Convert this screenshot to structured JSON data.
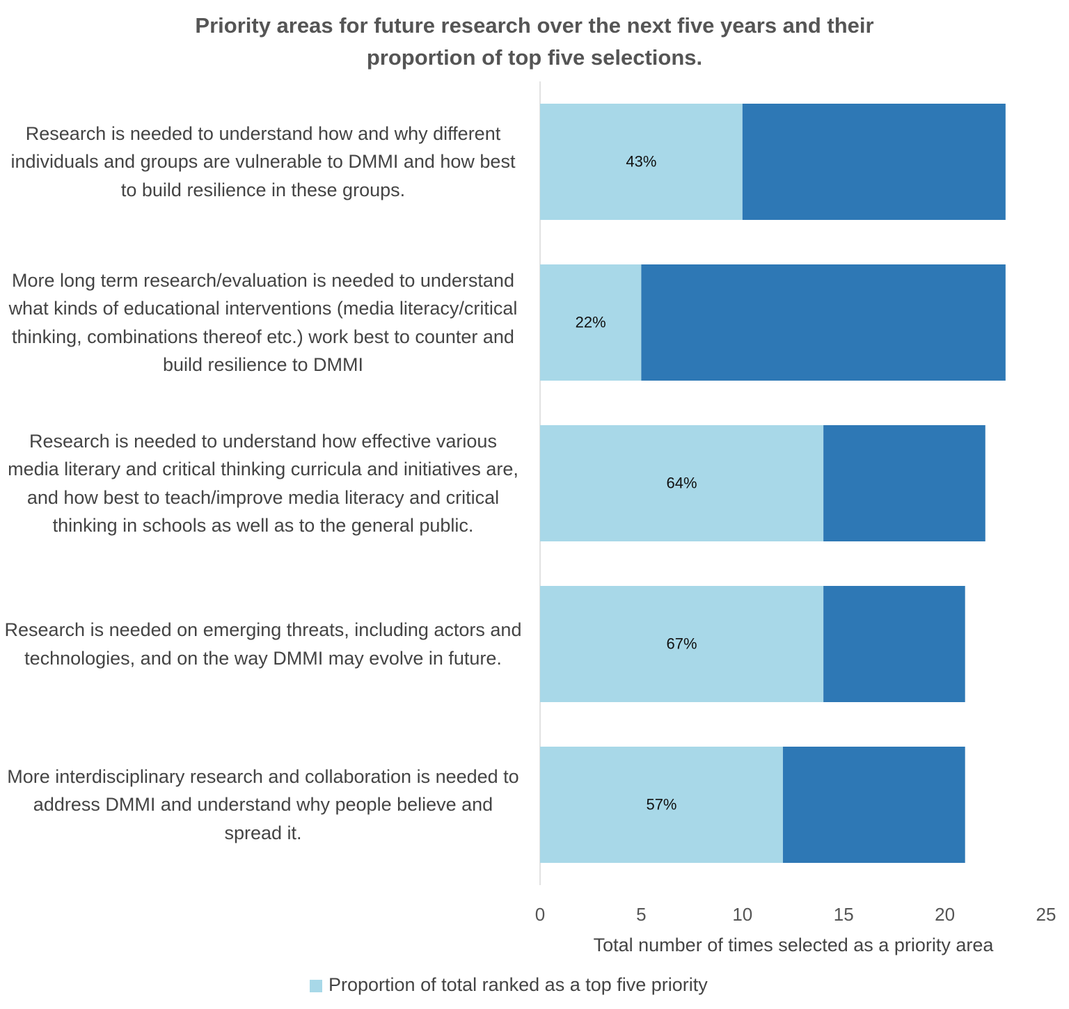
{
  "chart_data": {
    "type": "stacked-barh",
    "title": "Priority areas for future research over the next five years and their proportion of top five selections.",
    "categories": [
      "Research is needed to understand how and why different individuals and groups are vulnerable to DMMI and how best to build resilience in these groups.",
      "More long term research/evaluation is needed to understand what kinds of educational interventions (media literacy/critical thinking, combinations thereof etc.) work best to counter and build resilience to DMMI",
      "Research is needed to understand how effective various media literary and critical thinking curricula and initiatives are, and how best to teach/improve media literacy and critical thinking in schools as well as to the general public.",
      "Research is needed on emerging threats, including actors and technologies, and on the way DMMI may evolve in future.",
      "More interdisciplinary research and collaboration is needed to address DMMI and understand why people believe and spread it."
    ],
    "series": [
      {
        "name": "Proportion of total ranked as a top five priority",
        "color": "#a8d8e8",
        "values": [
          10,
          5,
          14,
          14,
          12
        ]
      },
      {
        "color": "#2e78b5",
        "values": [
          13,
          18,
          8,
          7,
          9
        ]
      }
    ],
    "proportions": {
      "values": [
        43,
        22,
        64,
        67,
        57
      ],
      "value_labels": [
        "43%",
        "22%",
        "64%",
        "67%",
        "57%"
      ]
    },
    "xlabel": "Total number of times selected as a priority area",
    "xlim": [
      0,
      25
    ],
    "xticks": [
      0,
      5,
      10,
      15,
      20,
      25
    ],
    "grid": false,
    "legend": "bottom"
  }
}
